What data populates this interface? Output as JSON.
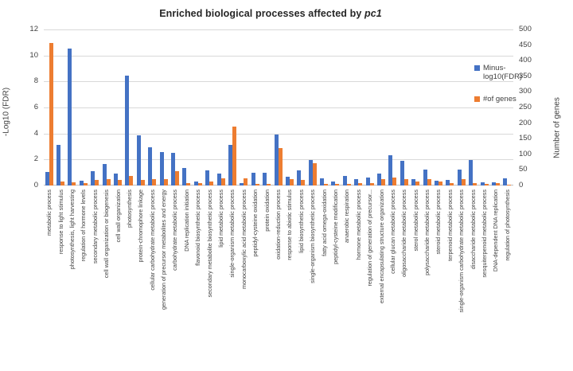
{
  "title": {
    "prefix": "Enriched biological processes affected by ",
    "italic_term": "pc1"
  },
  "legend": {
    "entries": [
      {
        "label": "Minus-log10(FDR)",
        "color": "#4472C4"
      },
      {
        "label": "#of genes",
        "color": "#ED7D31"
      }
    ]
  },
  "chart_data": {
    "type": "bar",
    "title": "Enriched biological processes affected by pc1",
    "grid": true,
    "legend_position": "right",
    "categories": [
      "metabolic process",
      "response to light stimulus",
      "photosynthesis, light harvesting",
      "regulation of hormone levels",
      "secondary metabolic process",
      "cell wall organization or biogenesis",
      "cell wall organization",
      "photosynthesis",
      "protein-chromophore linkage",
      "cellular carbohydrate metabolic process",
      "generation of precursor metabolites and energy",
      "carbohydrate metabolic process",
      "DNA replication initiation",
      "flavonoid biosynthetic process",
      "secondary metabolite biosynthetic process",
      "lipid metabolic process",
      "single-organism metabolic process",
      "monocarboxylic acid metabolic process",
      "peptidyl-cysteine oxidation",
      "protein oxidation",
      "oxidation-reduction process",
      "response to abiotic stimulus",
      "lipid biosynthetic process",
      "single-organism biosynthetic process",
      "fatty acid omega-oxidation",
      "peptidyl-cysteine modification",
      "anaerobic respiration",
      "hormone metabolic process",
      "regulation of generation of precursor...",
      "external encapsulating structure organization",
      "cellular glucan metabolic process",
      "oligosaccharide metabolic process",
      "sterol metabolic process",
      "polysaccharide metabolic process",
      "steroid metabolic process",
      "terpenoid metabolic process",
      "single-organism carbohydrate metabolic process",
      "disaccharide metabolic process",
      "sesquiterpenoid metabolic process",
      "DNA-dependent DNA replication",
      "regulation of photosynthesis"
    ],
    "series": [
      {
        "name": "Minus-log10(FDR)",
        "axis": "left",
        "color": "#4472C4",
        "values": [
          1.05,
          3.15,
          10.55,
          0.4,
          1.1,
          1.65,
          0.95,
          8.45,
          3.85,
          2.95,
          2.6,
          2.5,
          1.35,
          0.3,
          1.15,
          0.9,
          3.15,
          0.2,
          1.0,
          1.0,
          3.9,
          0.65,
          1.15,
          1.95,
          0.55,
          0.3,
          0.75,
          0.5,
          0.6,
          0.95,
          2.35,
          1.9,
          0.5,
          1.25,
          0.4,
          0.45,
          1.25,
          1.95,
          0.25,
          0.25,
          0.55
        ]
      },
      {
        "name": "#of genes",
        "axis": "right",
        "color": "#ED7D31",
        "values": [
          458,
          14,
          11,
          8,
          17,
          20,
          18,
          30,
          17,
          21,
          20,
          45,
          7,
          9,
          13,
          23,
          190,
          23,
          5,
          6,
          120,
          21,
          19,
          72,
          4,
          4,
          6,
          8,
          8,
          21,
          26,
          21,
          12,
          21,
          13,
          8,
          20,
          8,
          5,
          8,
          3
        ]
      }
    ],
    "left_axis": {
      "label": "-Log10 (FDR)",
      "min": 0,
      "max": 12,
      "ticks": [
        0,
        2,
        4,
        6,
        8,
        10,
        12
      ]
    },
    "right_axis": {
      "label": "Number of genes",
      "min": 0,
      "max": 500,
      "ticks": [
        0,
        50,
        100,
        150,
        200,
        250,
        300,
        350,
        400,
        450,
        500
      ]
    }
  }
}
